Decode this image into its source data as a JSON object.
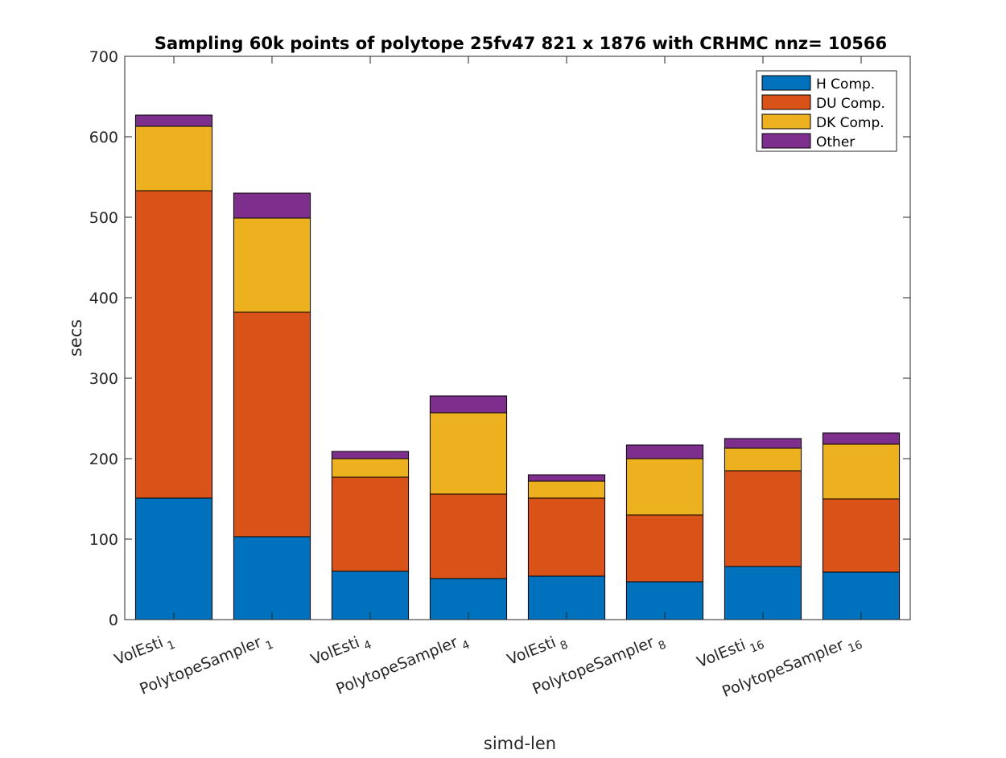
{
  "chart_data": {
    "type": "bar",
    "stacked": true,
    "title": "Sampling 60k points of polytope 25fv47 821 x 1876 with CRHMC nnz= 10566",
    "xlabel": "simd-len",
    "ylabel": "secs",
    "ylim": [
      0,
      700
    ],
    "yticks": [
      0,
      100,
      200,
      300,
      400,
      500,
      600,
      700
    ],
    "grid": false,
    "legend_position": "top-right",
    "categories": [
      {
        "base": "VolEsti",
        "sub": "1"
      },
      {
        "base": "PolytopeSampler",
        "sub": "1"
      },
      {
        "base": "VolEsti",
        "sub": "4"
      },
      {
        "base": "PolytopeSampler",
        "sub": "4"
      },
      {
        "base": "VolEsti",
        "sub": "8"
      },
      {
        "base": "PolytopeSampler",
        "sub": "8"
      },
      {
        "base": "VolEsti",
        "sub": "16"
      },
      {
        "base": "PolytopeSampler",
        "sub": "16"
      }
    ],
    "series": [
      {
        "name": "H Comp.",
        "color": "#0072BD",
        "values": [
          151,
          103,
          60,
          51,
          54,
          47,
          66,
          59
        ]
      },
      {
        "name": "DU Comp.",
        "color": "#D95319",
        "values": [
          382,
          279,
          117,
          105,
          97,
          83,
          119,
          91
        ]
      },
      {
        "name": "DK Comp.",
        "color": "#EDB120",
        "values": [
          80,
          117,
          23,
          101,
          21,
          70,
          28,
          68
        ]
      },
      {
        "name": "Other",
        "color": "#7E2F8E",
        "values": [
          14,
          31,
          9,
          21,
          8,
          17,
          12,
          14
        ]
      }
    ]
  }
}
